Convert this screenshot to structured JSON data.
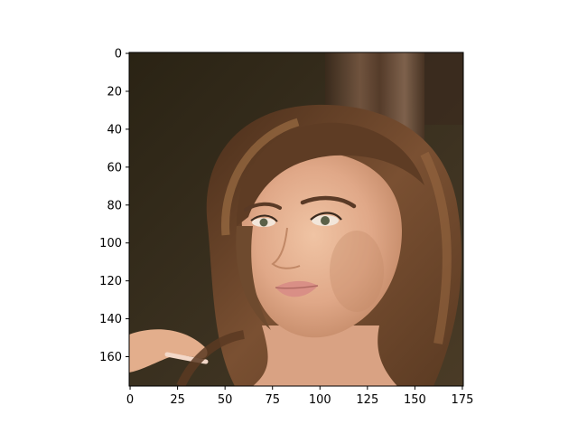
{
  "chart_data": {
    "type": "image",
    "title": "",
    "xlabel": "",
    "ylabel": "",
    "xlim": [
      -0.5,
      175.5
    ],
    "ylim": [
      175.5,
      -0.5
    ],
    "y_inverted": true,
    "x_ticks": [
      0,
      25,
      50,
      75,
      100,
      125,
      150,
      175
    ],
    "y_ticks": [
      0,
      20,
      40,
      60,
      80,
      100,
      120,
      140,
      160
    ],
    "x_tick_labels": [
      "0",
      "25",
      "50",
      "75",
      "100",
      "125",
      "150",
      "175"
    ],
    "y_tick_labels": [
      "0",
      "20",
      "40",
      "60",
      "80",
      "100",
      "120",
      "140",
      "160"
    ],
    "image_content": "portrait photograph",
    "grid": false
  },
  "colors": {
    "bg_top": "#2b2416",
    "bg_bottom": "#3d3420",
    "hair_dark": "#3a2414",
    "hair_mid": "#6b4528",
    "hair_light": "#9a6c44",
    "skin": "#e2b08e",
    "skin_shadow": "#c98f6c",
    "lips": "#d98f86",
    "eyes": "#5a6048",
    "brows": "#5a3a26",
    "axis": "#000000"
  }
}
